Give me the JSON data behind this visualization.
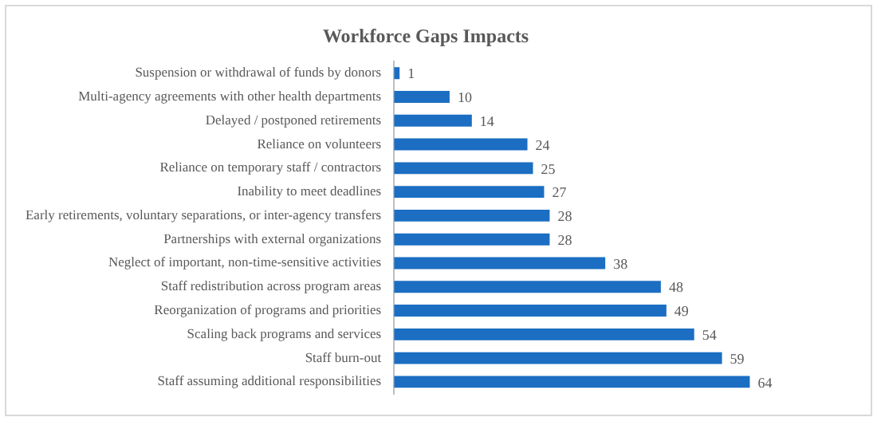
{
  "chart_data": {
    "type": "bar",
    "orientation": "horizontal",
    "title": "Workforce Gaps Impacts",
    "categories": [
      "Suspension or withdrawal of funds by donors",
      "Multi-agency agreements with other health departments",
      "Delayed / postponed retirements",
      "Reliance on volunteers",
      "Reliance on temporary staff / contractors",
      "Inability to meet deadlines",
      "Early retirements, voluntary separations, or inter-agency transfers",
      "Partnerships with external organizations",
      "Neglect of important, non-time-sensitive activities",
      "Staff redistribution across program areas",
      "Reorganization of programs and priorities",
      "Scaling back programs and services",
      "Staff burn-out",
      "Staff assuming additional responsibilities"
    ],
    "values": [
      1,
      10,
      14,
      24,
      25,
      27,
      28,
      28,
      38,
      48,
      49,
      54,
      59,
      64
    ],
    "color": "#1b6ec2",
    "data_labels": true
  }
}
